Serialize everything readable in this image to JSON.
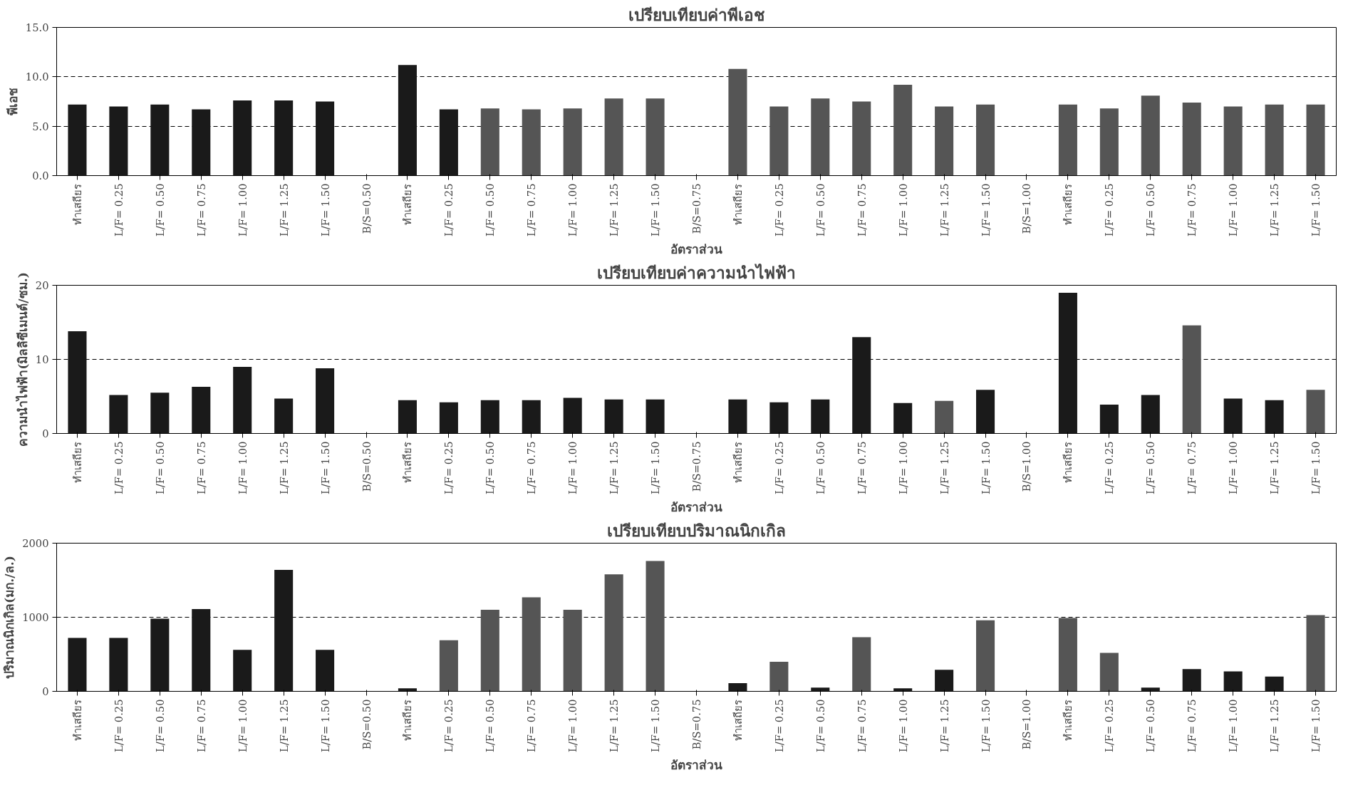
{
  "chart_data": [
    {
      "type": "bar",
      "title": "เปรียบเทียบค่าพีเอช",
      "xlabel": "อัตราส่วน",
      "ylabel": "พีเอช",
      "categories": [
        "ทำเสถียร",
        "L/F= 0.25",
        "L/F= 0.50",
        "L/F= 0.75",
        "L/F= 1.00",
        "L/F= 1.25",
        "L/F= 1.50",
        "B/S=0.50",
        "ทำเสถียร",
        "L/F= 0.25",
        "L/F= 0.50",
        "L/F= 0.75",
        "L/F= 1.00",
        "L/F= 1.25",
        "L/F= 1.50",
        "B/S=0.75",
        "ทำเสถียร",
        "L/F= 0.25",
        "L/F= 0.50",
        "L/F= 0.75",
        "L/F= 1.00",
        "L/F= 1.25",
        "L/F= 1.50",
        "B/S=1.00",
        "ทำเสถียร",
        "L/F= 0.25",
        "L/F= 0.50",
        "L/F= 0.75",
        "L/F= 1.00",
        "L/F= 1.25",
        "L/F= 1.50"
      ],
      "values": [
        7.2,
        7.0,
        7.2,
        6.7,
        7.6,
        7.6,
        7.5,
        0,
        11.2,
        6.7,
        6.8,
        6.7,
        6.8,
        7.8,
        7.8,
        0,
        10.8,
        7.0,
        7.8,
        7.5,
        9.2,
        7.0,
        7.2,
        0,
        7.2,
        6.8,
        8.1,
        7.4,
        7.0,
        7.2,
        7.2
      ],
      "colors": [
        "#1a1a1a",
        "#1a1a1a",
        "#1a1a1a",
        "#1a1a1a",
        "#1a1a1a",
        "#1a1a1a",
        "#1a1a1a",
        "#1a1a1a",
        "#1a1a1a",
        "#1a1a1a",
        "#555555",
        "#555555",
        "#555555",
        "#555555",
        "#555555",
        "#555555",
        "#555555",
        "#555555",
        "#555555",
        "#555555",
        "#555555",
        "#555555",
        "#555555",
        "#555555",
        "#555555",
        "#555555",
        "#555555",
        "#555555",
        "#555555",
        "#555555",
        "#555555"
      ],
      "ylim": [
        0,
        15
      ],
      "yticks": [
        {
          "value": 0,
          "label": "0.0"
        },
        {
          "value": 5,
          "label": "5.0"
        },
        {
          "value": 10,
          "label": "10.0"
        },
        {
          "value": 15,
          "label": "15.0"
        }
      ],
      "grid": "y"
    },
    {
      "type": "bar",
      "title": "เปรียบเทียบค่าความนำไฟฟ้า",
      "xlabel": "อัตราส่วน",
      "ylabel": "ความนำไฟฟ้า(มิลลิซีเมนต์/ซม.)",
      "categories": [
        "ทำเสถียร",
        "L/F= 0.25",
        "L/F= 0.50",
        "L/F= 0.75",
        "L/F= 1.00",
        "L/F= 1.25",
        "L/F= 1.50",
        "B/S=0.50",
        "ทำเสถียร",
        "L/F= 0.25",
        "L/F= 0.50",
        "L/F= 0.75",
        "L/F= 1.00",
        "L/F= 1.25",
        "L/F= 1.50",
        "B/S=0.75",
        "ทำเสถียร",
        "L/F= 0.25",
        "L/F= 0.50",
        "L/F= 0.75",
        "L/F= 1.00",
        "L/F= 1.25",
        "L/F= 1.50",
        "B/S=1.00",
        "ทำเสถียร",
        "L/F= 0.25",
        "L/F= 0.50",
        "L/F= 0.75",
        "L/F= 1.00",
        "L/F= 1.25",
        "L/F= 1.50"
      ],
      "values": [
        13.8,
        5.2,
        5.5,
        6.3,
        9.0,
        4.7,
        8.8,
        0,
        4.5,
        4.2,
        4.5,
        4.5,
        4.8,
        4.6,
        4.6,
        0,
        4.6,
        4.2,
        4.6,
        13.0,
        4.1,
        4.4,
        5.9,
        0,
        19.0,
        3.9,
        5.2,
        14.6,
        4.7,
        4.5,
        5.9
      ],
      "colors": [
        "#1a1a1a",
        "#1a1a1a",
        "#1a1a1a",
        "#1a1a1a",
        "#1a1a1a",
        "#1a1a1a",
        "#1a1a1a",
        "#1a1a1a",
        "#1a1a1a",
        "#1a1a1a",
        "#1a1a1a",
        "#1a1a1a",
        "#1a1a1a",
        "#1a1a1a",
        "#1a1a1a",
        "#1a1a1a",
        "#1a1a1a",
        "#1a1a1a",
        "#1a1a1a",
        "#1a1a1a",
        "#1a1a1a",
        "#555555",
        "#1a1a1a",
        "#1a1a1a",
        "#1a1a1a",
        "#1a1a1a",
        "#1a1a1a",
        "#555555",
        "#1a1a1a",
        "#1a1a1a",
        "#555555"
      ],
      "ylim": [
        0,
        20
      ],
      "yticks": [
        0,
        10,
        20
      ],
      "grid": "y"
    },
    {
      "type": "bar",
      "title": "เปรียบเทียบปริมาณนิกเกิล",
      "xlabel": "อัตราส่วน",
      "ylabel": "ปริมาณนิกเกิล(มก./ล.)",
      "categories": [
        "ทำเสถียร",
        "L/F= 0.25",
        "L/F= 0.50",
        "L/F= 0.75",
        "L/F= 1.00",
        "L/F= 1.25",
        "L/F= 1.50",
        "B/S=0.50",
        "ทำเสถียร",
        "L/F= 0.25",
        "L/F= 0.50",
        "L/F= 0.75",
        "L/F= 1.00",
        "L/F= 1.25",
        "L/F= 1.50",
        "B/S=0.75",
        "ทำเสถียร",
        "L/F= 0.25",
        "L/F= 0.50",
        "L/F= 0.75",
        "L/F= 1.00",
        "L/F= 1.25",
        "L/F= 1.50",
        "B/S=1.00",
        "ทำเสถียร",
        "L/F= 0.25",
        "L/F= 0.50",
        "L/F= 0.75",
        "L/F= 1.00",
        "L/F= 1.25",
        "L/F= 1.50"
      ],
      "values": [
        720,
        720,
        980,
        1110,
        560,
        1640,
        560,
        0,
        40,
        690,
        1100,
        1270,
        1100,
        1580,
        1760,
        0,
        110,
        400,
        50,
        730,
        40,
        290,
        960,
        0,
        990,
        520,
        50,
        300,
        270,
        200,
        1030
      ],
      "colors": [
        "#1a1a1a",
        "#1a1a1a",
        "#1a1a1a",
        "#1a1a1a",
        "#1a1a1a",
        "#1a1a1a",
        "#1a1a1a",
        "#1a1a1a",
        "#1a1a1a",
        "#555555",
        "#555555",
        "#555555",
        "#555555",
        "#555555",
        "#555555",
        "#555555",
        "#1a1a1a",
        "#555555",
        "#1a1a1a",
        "#555555",
        "#1a1a1a",
        "#1a1a1a",
        "#555555",
        "#555555",
        "#555555",
        "#555555",
        "#1a1a1a",
        "#1a1a1a",
        "#1a1a1a",
        "#1a1a1a",
        "#555555"
      ],
      "ylim": [
        0,
        2000
      ],
      "yticks": [
        0,
        1000,
        2000
      ],
      "grid": "y"
    }
  ]
}
